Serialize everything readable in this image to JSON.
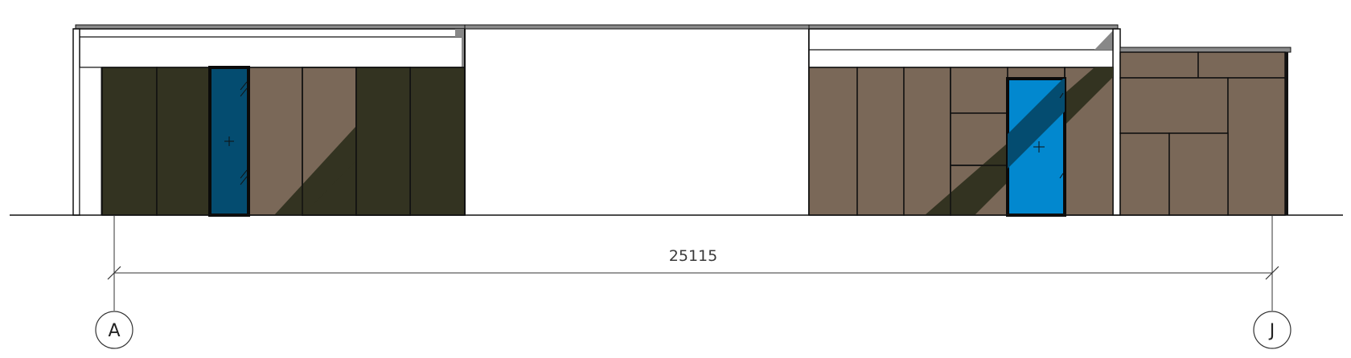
{
  "colors": {
    "cladding_light": "#7a6858",
    "cladding_dark": "#333321",
    "door_dark": "#044c70",
    "door_light": "#0288cf",
    "roof": "#8a8a8a",
    "line": "#111111",
    "dim_line": "#333333"
  },
  "dimension": {
    "overall": "25115"
  },
  "grid_lines": [
    {
      "label": "A"
    },
    {
      "label": "J"
    }
  ]
}
